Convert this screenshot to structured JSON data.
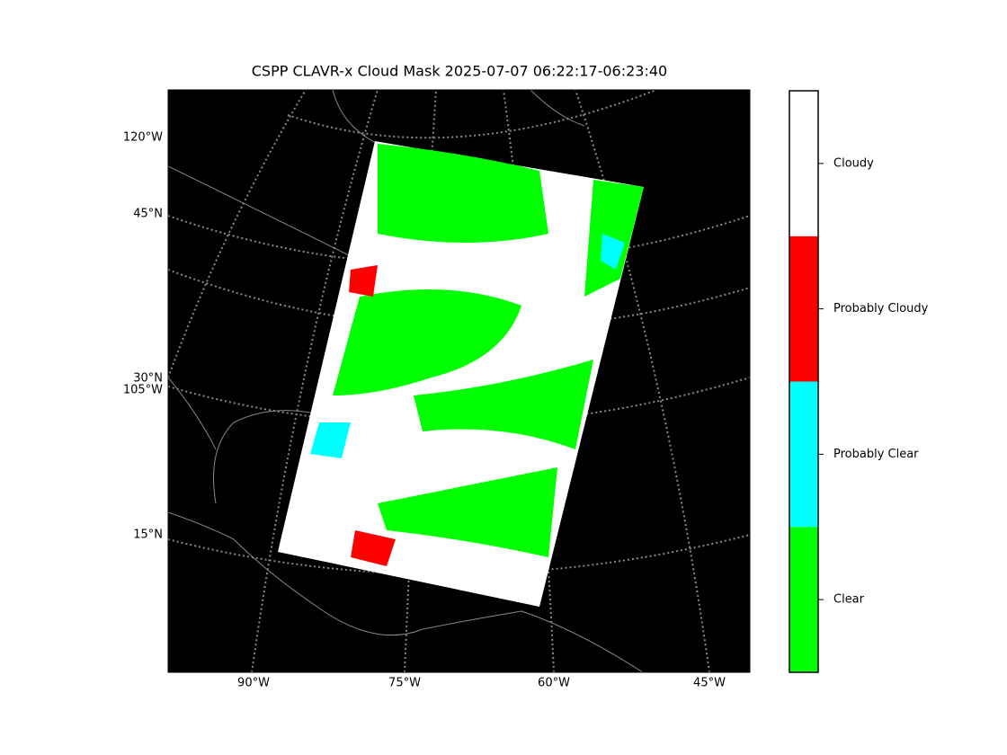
{
  "title": "CSPP CLAVR-x Cloud Mask 2025-07-07 06:22:17-06:23:40",
  "longitude_labels": [
    "90°W",
    "75°W",
    "60°W",
    "45°W"
  ],
  "latitude_labels": [
    "120°W",
    "45°N",
    "30°N",
    "105°W",
    "15°N"
  ],
  "colorbar": {
    "categories": [
      {
        "label": "Clear",
        "color": "#00ff00"
      },
      {
        "label": "Probably Clear",
        "color": "#00ffff"
      },
      {
        "label": "Probably Cloudy",
        "color": "#ff0000"
      },
      {
        "label": "Cloudy",
        "color": "#ffffff"
      }
    ]
  }
}
